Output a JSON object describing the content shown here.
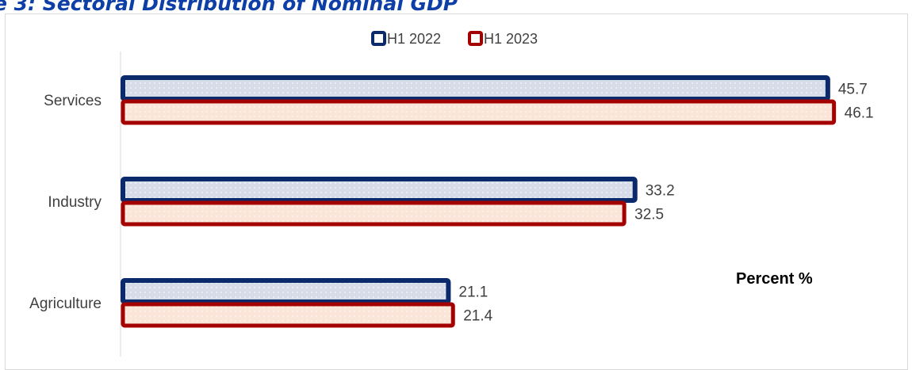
{
  "title": "e 3: Sectoral Distribution of Nominal GDP",
  "chart_data": {
    "type": "bar",
    "orientation": "horizontal",
    "categories": [
      "Services",
      "Industry",
      "Agriculture"
    ],
    "series": [
      {
        "name": "H1 2022",
        "values": [
          45.7,
          33.2,
          21.1
        ],
        "stroke": "#0b2a6b",
        "fill": "#d6dde9"
      },
      {
        "name": "H1 2023",
        "values": [
          46.1,
          32.5,
          21.4
        ],
        "stroke": "#a50000",
        "fill": "#fbe4d8"
      }
    ],
    "xlim": [
      0,
      50
    ],
    "legend_position": "top-center",
    "annotation": "Percent %",
    "grid": false
  }
}
